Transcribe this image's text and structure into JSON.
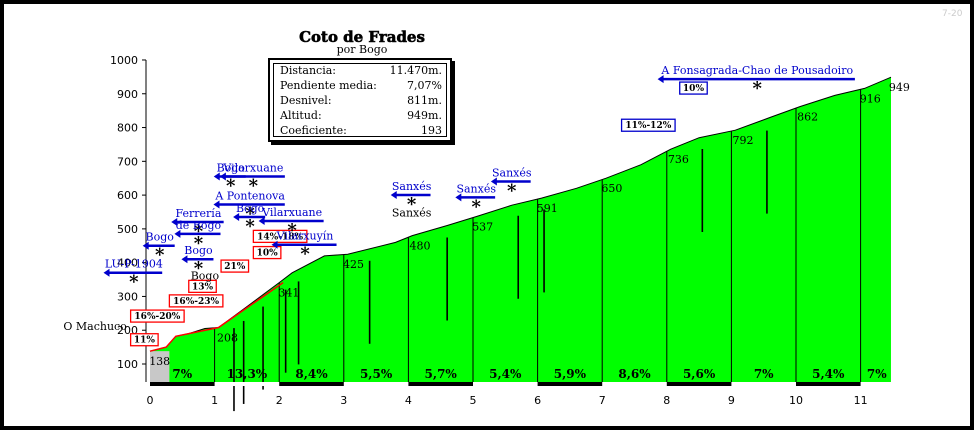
{
  "watermark": "7-20",
  "stats": {
    "rows": [
      {
        "label": "Distancia:",
        "value": "11.470m."
      },
      {
        "label": "Pendiente media:",
        "value": "7,07%"
      },
      {
        "label": "Desnivel:",
        "value": "811m."
      },
      {
        "label": "Altitud:",
        "value": "949m."
      },
      {
        "label": "Coeficiente:",
        "value": "193"
      }
    ]
  },
  "chart_data": {
    "type": "area",
    "title": "Coto de Frades",
    "subtitle": "por Bogo",
    "xlim": [
      0,
      11.47
    ],
    "ylim": [
      100,
      1000
    ],
    "x_ticks": [
      0,
      1,
      2,
      3,
      4,
      5,
      6,
      7,
      8,
      9,
      10,
      11
    ],
    "y_ticks": [
      100,
      200,
      300,
      400,
      500,
      600,
      700,
      800,
      900,
      1000
    ],
    "profile": [
      [
        0,
        138
      ],
      [
        0.25,
        150
      ],
      [
        0.4,
        182
      ],
      [
        0.6,
        190
      ],
      [
        0.85,
        205
      ],
      [
        1.06,
        208
      ],
      [
        1.5,
        270
      ],
      [
        2.0,
        341
      ],
      [
        2.2,
        370
      ],
      [
        2.7,
        420
      ],
      [
        3.06,
        425
      ],
      [
        3.8,
        460
      ],
      [
        4.06,
        480
      ],
      [
        4.6,
        510
      ],
      [
        5.06,
        537
      ],
      [
        5.6,
        570
      ],
      [
        6.06,
        591
      ],
      [
        6.6,
        620
      ],
      [
        7.06,
        650
      ],
      [
        7.6,
        690
      ],
      [
        8.06,
        736
      ],
      [
        8.5,
        770
      ],
      [
        9.06,
        792
      ],
      [
        9.6,
        830
      ],
      [
        10.06,
        862
      ],
      [
        10.6,
        895
      ],
      [
        11.06,
        916
      ],
      [
        11.47,
        949
      ]
    ],
    "steep_section": [
      [
        0,
        138
      ],
      [
        0.25,
        150
      ],
      [
        0.4,
        182
      ],
      [
        1.06,
        208
      ],
      [
        2.06,
        341
      ]
    ],
    "point_labels": [
      {
        "x": 0.15,
        "y": 138,
        "text": "138"
      },
      {
        "x": 1.2,
        "y": 208,
        "text": "208"
      },
      {
        "x": 2.15,
        "y": 341,
        "text": "341"
      },
      {
        "x": 3.15,
        "y": 425,
        "text": "425"
      },
      {
        "x": 4.18,
        "y": 480,
        "text": "480"
      },
      {
        "x": 5.15,
        "y": 537,
        "text": "537"
      },
      {
        "x": 6.15,
        "y": 591,
        "text": "591"
      },
      {
        "x": 7.15,
        "y": 650,
        "text": "650"
      },
      {
        "x": 8.18,
        "y": 736,
        "text": "736"
      },
      {
        "x": 9.18,
        "y": 792,
        "text": "792"
      },
      {
        "x": 10.18,
        "y": 862,
        "text": "862"
      },
      {
        "x": 11.15,
        "y": 916,
        "text": "916"
      },
      {
        "x": 11.6,
        "y": 949,
        "text": "949"
      }
    ],
    "segment_gradients": [
      {
        "x": 0.5,
        "text": "7%"
      },
      {
        "x": 1.5,
        "text": "13,3%"
      },
      {
        "x": 2.5,
        "text": "8,4%"
      },
      {
        "x": 3.5,
        "text": "5,5%"
      },
      {
        "x": 4.5,
        "text": "5,7%"
      },
      {
        "x": 5.5,
        "text": "5,4%"
      },
      {
        "x": 6.5,
        "text": "5,9%"
      },
      {
        "x": 7.5,
        "text": "8,6%"
      },
      {
        "x": 8.5,
        "text": "5,6%"
      },
      {
        "x": 9.5,
        "text": "7%"
      },
      {
        "x": 10.5,
        "text": "5,4%"
      },
      {
        "x": 11.25,
        "text": "7%"
      }
    ],
    "ramp_labels": [
      {
        "x": -0.3,
        "y": 160,
        "text": "11%"
      },
      {
        "x": -0.3,
        "y": 230,
        "text": "16%-20%"
      },
      {
        "x": 0.3,
        "y": 275,
        "text": "16%-23%"
      },
      {
        "x": 0.6,
        "y": 318,
        "text": "13%"
      },
      {
        "x": 1.1,
        "y": 378,
        "text": "21%"
      },
      {
        "x": 1.6,
        "y": 418,
        "text": "10%"
      },
      {
        "x": 1.6,
        "y": 466,
        "text": "14%-18%"
      },
      {
        "x": 7.3,
        "y": 795,
        "text": "11%-12%"
      },
      {
        "x": 8.2,
        "y": 905,
        "text": "10%"
      }
    ],
    "places": [
      {
        "x": -0.85,
        "y": 200,
        "text": "O Machuco",
        "color": "#000"
      },
      {
        "x": -0.25,
        "y": 385,
        "text": "LU-P-1904",
        "color": "#00c"
      },
      {
        "x": 0.15,
        "y": 465,
        "text": "Bogo",
        "color": "#00c"
      },
      {
        "x": 0.75,
        "y": 535,
        "text": "Ferrería",
        "color": "#00c"
      },
      {
        "x": 0.75,
        "y": 500,
        "text": "de Bogo",
        "color": "#00c"
      },
      {
        "x": 0.75,
        "y": 425,
        "text": "Bogo",
        "color": "#00c"
      },
      {
        "x": 0.85,
        "y": 350,
        "text": "Bogo",
        "color": "#000"
      },
      {
        "x": 1.25,
        "y": 670,
        "text": "Bogo",
        "color": "#00c"
      },
      {
        "x": 1.6,
        "y": 670,
        "text": "Vilarxuane",
        "color": "#00c"
      },
      {
        "x": 1.55,
        "y": 587,
        "text": "A Pontenova",
        "color": "#00c"
      },
      {
        "x": 1.55,
        "y": 550,
        "text": "Bogo",
        "color": "#00c"
      },
      {
        "x": 2.2,
        "y": 538,
        "text": "Vilarxuane",
        "color": "#00c"
      },
      {
        "x": 2.4,
        "y": 468,
        "text": "Vilarxuyín",
        "color": "#00c"
      },
      {
        "x": 4.05,
        "y": 615,
        "text": "Sanxés",
        "color": "#00c"
      },
      {
        "x": 4.05,
        "y": 537,
        "text": "Sanxés",
        "color": "#000"
      },
      {
        "x": 5.05,
        "y": 608,
        "text": "Sanxés",
        "color": "#00c"
      },
      {
        "x": 5.6,
        "y": 655,
        "text": "Sanxés",
        "color": "#00c"
      },
      {
        "x": 9.4,
        "y": 958,
        "text": "A Fonsagrada-Chao de Pousadoiro",
        "color": "#00c"
      }
    ]
  }
}
